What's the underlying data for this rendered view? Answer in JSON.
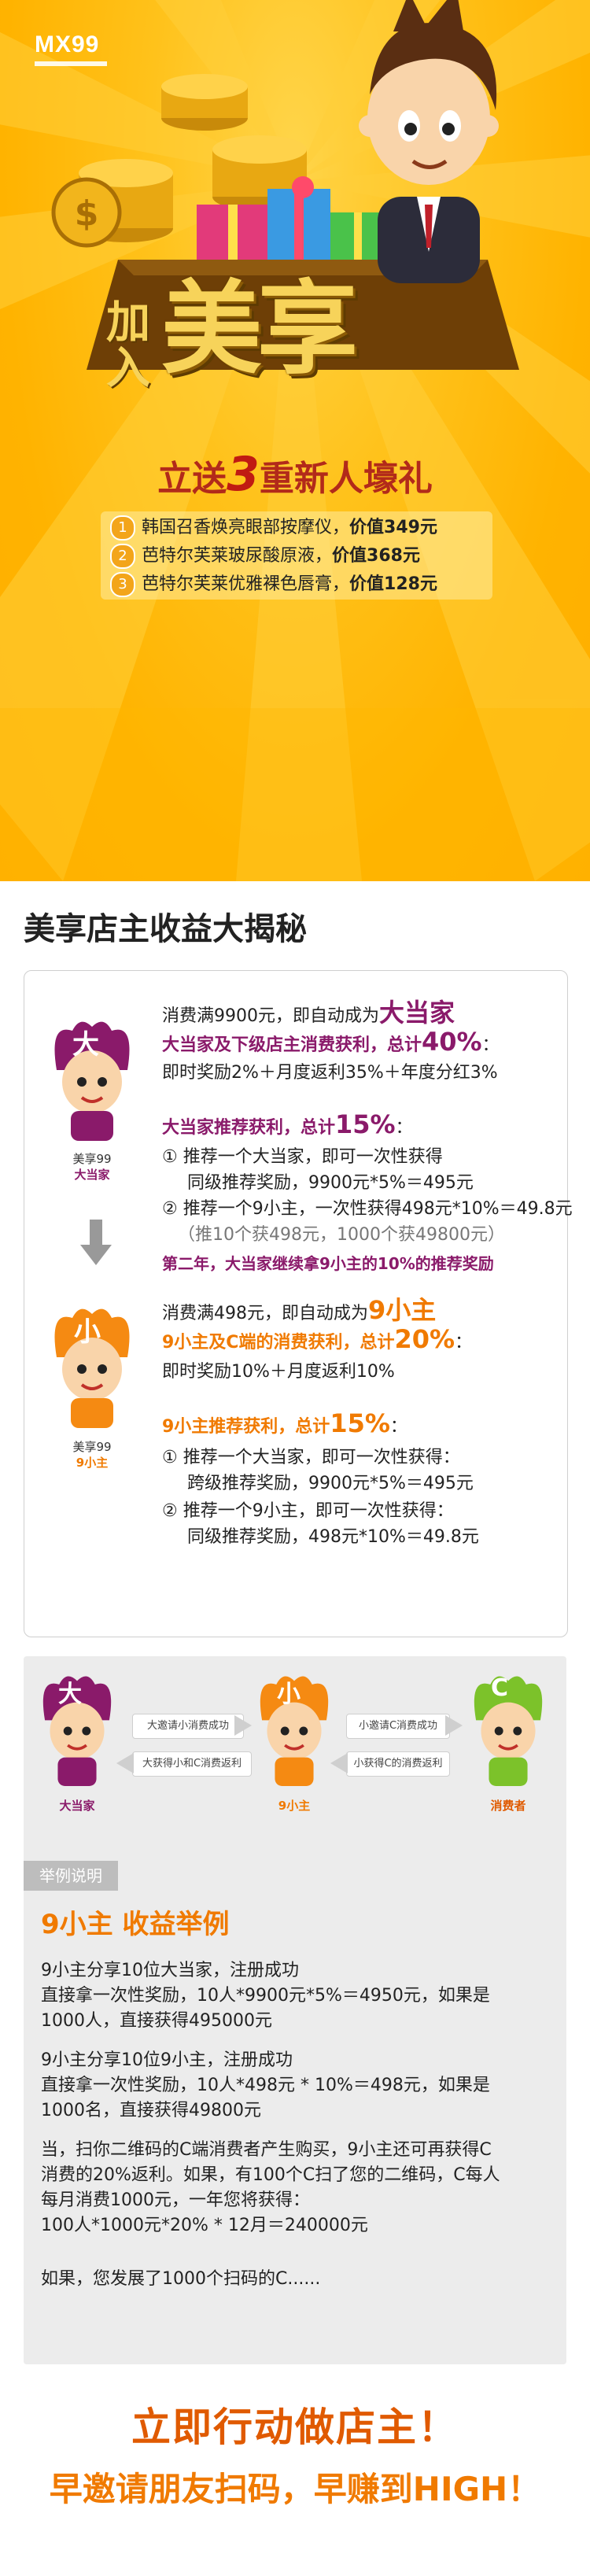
{
  "brand": {
    "logo": "MX99"
  },
  "hero": {
    "title_small": "加入",
    "title_big": "美享",
    "gift_prefix": "立送",
    "gift_number": "3",
    "gift_suffix": "重新人壕礼",
    "gifts": [
      {
        "num": "1",
        "name": "韩国召香焕亮眼部按摩仪，",
        "value": "价值349元"
      },
      {
        "num": "2",
        "name": "芭特尔芙莱玻尿酸原液，",
        "value": "价值368元"
      },
      {
        "num": "3",
        "name": "芭特尔芙莱优雅裸色唇膏，",
        "value": "价值128元"
      }
    ]
  },
  "section": {
    "title": "美享店主收益大揭秘"
  },
  "tier_da": {
    "badge": "大",
    "caption_top": "美享99",
    "caption_bottom": "大当家",
    "line1_pre": "消费满9900元，即自动成为",
    "line1_em": "大当家",
    "line2_pre": "大当家及下级店主消费获利，总计",
    "line2_em": "40%",
    "line2_post": "：",
    "line3": "即时奖励2%＋月度返利35%＋年度分红3%",
    "rec_pre": "大当家推荐获利，总计",
    "rec_em": "15%",
    "rec_post": "：",
    "r1a": "推荐一个大当家，即可一次性获得",
    "r1b": "同级推荐奖励，9900元*5%＝495元",
    "r2a": "推荐一个9小主，一次性获得498元*10%＝49.8元",
    "r2b": "（推10个获498元，1000个获49800元）",
    "second_year": "第二年，大当家继续拿9小主的10%的推荐奖励"
  },
  "tier_xiao": {
    "badge": "小",
    "caption_top": "美享99",
    "caption_bottom": "9小主",
    "line1_pre": "消费满498元，即自动成为",
    "line1_em": "9小主",
    "line2_pre": "9小主及C端的消费获利，总计",
    "line2_em": "20%",
    "line2_post": "：",
    "line3": "即时奖励10%＋月度返利10%",
    "rec_pre": "9小主推荐获利，总计",
    "rec_em": "15%",
    "rec_post": "：",
    "r1a": "推荐一个大当家，即可一次性获得：",
    "r1b": "跨级推荐奖励，9900元*5%＝495元",
    "r2a": "推荐一个9小主，即可一次性获得：",
    "r2b": "同级推荐奖励，498元*10%＝49.8元"
  },
  "markers": {
    "one": "①",
    "two": "②"
  },
  "flow": {
    "da_caption": "大当家",
    "xiao_caption": "9小主",
    "c_caption": "消费者",
    "da_badge": "大",
    "xiao_badge": "小",
    "c_badge": "C",
    "a1": "大邀请小消费成功",
    "a2": "大获得小和C消费返利",
    "a3": "小邀请C消费成功",
    "a4": "小获得C的消费返利"
  },
  "example": {
    "tag": "举例说明",
    "title": "9小主 收益举例",
    "p1": [
      "9小主分享10位大当家，注册成功",
      "直接拿一次性奖励，10人*9900元*5%＝4950元，如果是",
      "1000人，直接获得495000元"
    ],
    "p2": [
      "9小主分享10位9小主，注册成功",
      "直接拿一次性奖励，10人*498元 * 10%＝498元，如果是",
      "1000名，直接获得49800元"
    ],
    "p3": [
      "当，扫你二维码的C端消费者产生购买，9小主还可再获得C",
      "消费的20%返利。如果，有100个C扫了您的二维码，C每人",
      "每月消费1000元，一年您将获得：",
      "100人*1000元*20% * 12月＝240000元"
    ],
    "p4": "如果，您发展了1000个扫码的C......"
  },
  "cta": {
    "line1": "立即行动做店主！",
    "line2": "早邀请朋友扫码，早赚到HIGH！"
  }
}
